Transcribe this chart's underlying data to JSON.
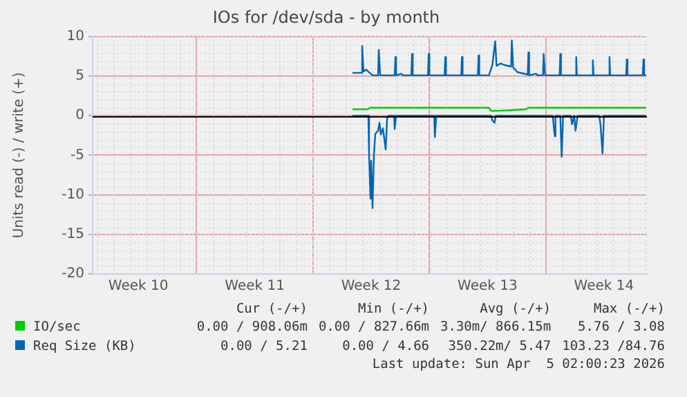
{
  "chart_data": {
    "type": "line",
    "title": "IOs for /dev/sda - by month",
    "ylabel": "Units read (-) / write (+)",
    "xlim": [
      "2026-03-02T18:00",
      "2026-04-05T02:00"
    ],
    "xticks": [
      {
        "value": "2026-03-05T12:00",
        "label": "Week 10"
      },
      {
        "value": "2026-03-09",
        "label": null
      },
      {
        "value": "2026-03-12T12:00",
        "label": "Week 11"
      },
      {
        "value": "2026-03-16",
        "label": null
      },
      {
        "value": "2026-03-19T12:00",
        "label": "Week 12"
      },
      {
        "value": "2026-03-23",
        "label": null
      },
      {
        "value": "2026-03-26T12:00",
        "label": "Week 13"
      },
      {
        "value": "2026-03-30",
        "label": null
      },
      {
        "value": "2026-04-02T12:00",
        "label": "Week 14"
      }
    ],
    "ylim": [
      -20,
      10
    ],
    "yticks": [
      -20,
      -15,
      -10,
      -5,
      0,
      5,
      10
    ],
    "grid": true,
    "legend": "bottom",
    "marker": "none",
    "line_style": "solid",
    "ref_lines": [
      {
        "axis": "y",
        "value": 0,
        "color": "#000000"
      }
    ],
    "series": [
      {
        "name": "IO/sec",
        "color": "#00cc00",
        "x": [
          "2026-03-18T10:00",
          "2026-03-19T07:00",
          "2026-03-19T11:00",
          "2026-03-26T14:00",
          "2026-03-26T17:00",
          "2026-03-26T20:00",
          "2026-03-28T00:00",
          "2026-03-28T19:00",
          "2026-03-28T23:00",
          "2026-04-05T00:00"
        ],
        "values": [
          0.8,
          0.8,
          1.0,
          1.0,
          0.6,
          0.6,
          0.7,
          0.8,
          1.0,
          1.0
        ]
      },
      {
        "name": "Req Size (KB)",
        "color": "#0066b3",
        "x": [
          "2026-03-18T10:00",
          "2026-03-18T22:00",
          "2026-03-18T23:00",
          "2026-03-19T01:00",
          "2026-03-19T05:00",
          "2026-03-19T10:00",
          "2026-03-19T14:00",
          "2026-03-19T22:00",
          "2026-03-19T23:00",
          "2026-03-20T01:00",
          "2026-03-20T12:00",
          "2026-03-20T22:00",
          "2026-03-20T23:00",
          "2026-03-21T00:00",
          "2026-03-21T07:00",
          "2026-03-21T10:00",
          "2026-03-21T22:00",
          "2026-03-21T23:00",
          "2026-03-22T00:00",
          "2026-03-22T22:00",
          "2026-03-22T23:00",
          "2026-03-23T00:00",
          "2026-03-23T22:00",
          "2026-03-23T23:00",
          "2026-03-24T00:00",
          "2026-03-24T22:00",
          "2026-03-24T23:00",
          "2026-03-25T00:00",
          "2026-03-25T22:00",
          "2026-03-25T23:00",
          "2026-03-26T00:00",
          "2026-03-26T14:00",
          "2026-03-26T19:00",
          "2026-03-26T23:00",
          "2026-03-27T01:00",
          "2026-03-27T07:00",
          "2026-03-27T12:00",
          "2026-03-27T22:00",
          "2026-03-27T23:00",
          "2026-03-28T01:00",
          "2026-03-28T07:00",
          "2026-03-28T22:00",
          "2026-03-28T23:00",
          "2026-03-29T00:00",
          "2026-03-29T10:00",
          "2026-03-29T12:00",
          "2026-03-29T20:00",
          "2026-03-29T21:00",
          "2026-03-29T23:00",
          "2026-03-30T20:00",
          "2026-03-30T21:00",
          "2026-03-30T22:00",
          "2026-03-31T19:00",
          "2026-03-31T20:00",
          "2026-03-31T21:00",
          "2026-04-01T19:00",
          "2026-04-01T20:00",
          "2026-04-01T21:00",
          "2026-04-02T19:00",
          "2026-04-02T20:00",
          "2026-04-02T21:00",
          "2026-04-03T20:00",
          "2026-04-03T21:00",
          "2026-04-03T22:00",
          "2026-04-04T20:00",
          "2026-04-04T21:00",
          "2026-04-04T22:00",
          "2026-04-05T00:00"
        ],
        "values": [
          5.4,
          5.4,
          8.8,
          5.6,
          5.8,
          5.4,
          5.1,
          5.1,
          8.3,
          5.1,
          5.1,
          5.1,
          7.4,
          5.1,
          5.3,
          5.1,
          5.1,
          7.8,
          5.1,
          5.1,
          7.8,
          5.1,
          5.1,
          7.4,
          5.1,
          5.1,
          7.4,
          5.1,
          5.1,
          7.6,
          5.1,
          5.1,
          6.4,
          9.4,
          6.3,
          6.6,
          6.4,
          6.2,
          9.5,
          6.1,
          5.5,
          5.2,
          8.0,
          5.1,
          5.3,
          5.1,
          5.1,
          7.8,
          5.1,
          5.1,
          7.8,
          5.1,
          5.1,
          7.4,
          5.1,
          5.1,
          7.0,
          5.1,
          5.1,
          7.4,
          5.1,
          5.1,
          7.1,
          5.1,
          5.1,
          7.1,
          5.1,
          5.1
        ]
      },
      {
        "color": "#0066b3",
        "x": [
          "2026-03-18T10:00",
          "2026-03-19T08:00",
          "2026-03-19T09:00",
          "2026-03-19T11:00",
          "2026-03-19T12:00",
          "2026-03-19T14:00",
          "2026-03-19T16:00",
          "2026-03-19T18:00",
          "2026-03-19T20:00",
          "2026-03-19T22:00",
          "2026-03-20T00:00",
          "2026-03-20T02:00",
          "2026-03-20T05:00",
          "2026-03-20T09:00",
          "2026-03-20T11:00",
          "2026-03-20T13:00",
          "2026-03-20T21:00",
          "2026-03-20T22:00",
          "2026-03-21T00:00",
          "2026-03-23T07:00",
          "2026-03-23T08:00",
          "2026-03-23T10:00",
          "2026-03-26T17:00",
          "2026-03-26T19:00",
          "2026-03-26T22:00",
          "2026-03-27T00:00",
          "2026-03-30T10:00",
          "2026-03-30T13:00",
          "2026-03-30T14:00",
          "2026-03-30T21:00",
          "2026-03-30T23:00",
          "2026-03-31T01:00",
          "2026-03-31T12:00",
          "2026-03-31T14:00",
          "2026-03-31T17:00",
          "2026-03-31T19:00",
          "2026-03-31T22:00",
          "2026-04-02T05:00",
          "2026-04-02T07:00",
          "2026-04-02T10:00",
          "2026-04-02T12:00",
          "2026-04-05T00:00"
        ],
        "values": [
          0,
          0,
          -5,
          -10.5,
          -5.7,
          -11.7,
          -5,
          -2.3,
          -2.1,
          -1.9,
          -0.9,
          -2.4,
          -1.6,
          -4.3,
          -0.4,
          0,
          0,
          -1.7,
          0,
          0,
          -2.7,
          0,
          0,
          -0.6,
          -0.9,
          0,
          0,
          -2.6,
          0,
          0,
          -5.2,
          0,
          0,
          -1.1,
          0,
          -1.9,
          0,
          0,
          -1.1,
          -4.8,
          0,
          0
        ]
      }
    ],
    "annotations": [
      "Cur (-/+)",
      "Min (-/+)",
      "Avg (-/+)",
      "Max (-/+)",
      "0.00 / 908.06m",
      "0.00 / 827.66m",
      "3.30m/ 866.15m",
      "5.76 / 3.08",
      "0.00 / 5.21",
      "0.00 / 4.66",
      "350.22m/ 5.47",
      "103.23 /84.76",
      "Last update: Sun Apr  5 02:00:23 2026"
    ]
  }
}
